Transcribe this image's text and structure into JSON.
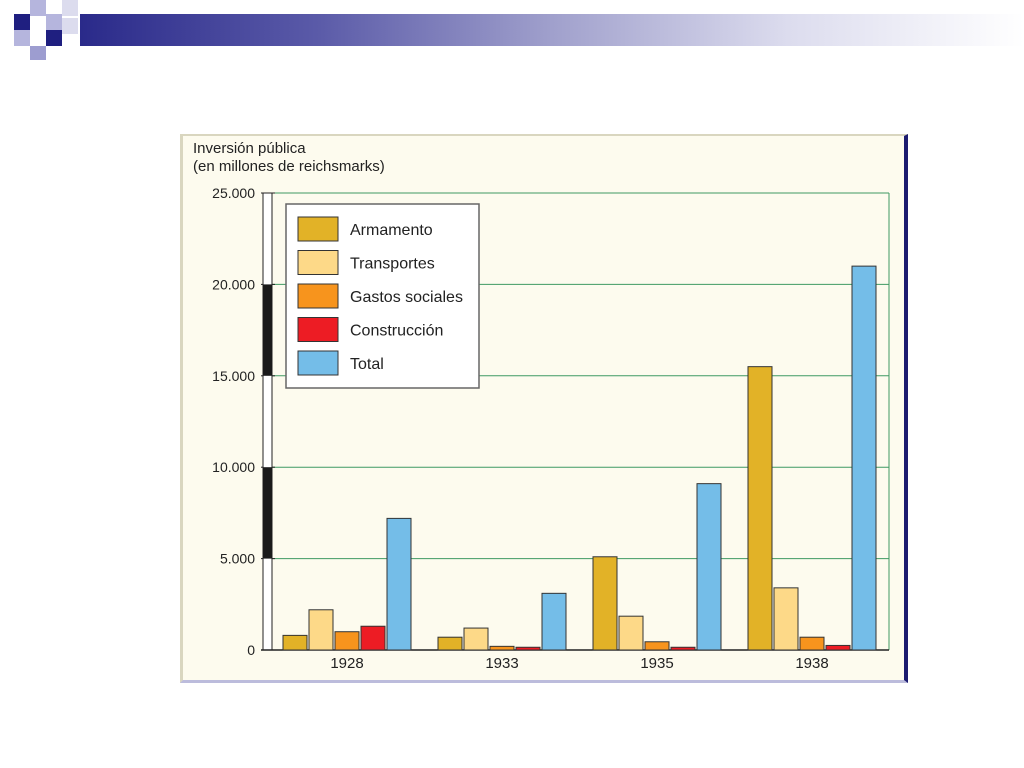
{
  "chart_data": {
    "type": "bar",
    "title": "Inversión pública",
    "subtitle": "(en millones de reichsmarks)",
    "categories": [
      "1928",
      "1933",
      "1935",
      "1938"
    ],
    "series": [
      {
        "name": "Armamento",
        "color": "#e2b227",
        "values": [
          800,
          700,
          5100,
          15500
        ]
      },
      {
        "name": "Transportes",
        "color": "#fdd988",
        "values": [
          2200,
          1200,
          1850,
          3400
        ]
      },
      {
        "name": "Gastos sociales",
        "color": "#f7941d",
        "values": [
          1000,
          200,
          450,
          700
        ]
      },
      {
        "name": "Construcción",
        "color": "#ed1c24",
        "values": [
          1300,
          150,
          150,
          250
        ]
      },
      {
        "name": "Total",
        "color": "#74bde8",
        "values": [
          7200,
          3100,
          9100,
          21000
        ]
      }
    ],
    "ylim": [
      0,
      25000
    ],
    "yticks": [
      {
        "value": 0,
        "label": "0"
      },
      {
        "value": 5000,
        "label": "5.000"
      },
      {
        "value": 10000,
        "label": "10.000"
      },
      {
        "value": 15000,
        "label": "15.000"
      },
      {
        "value": 20000,
        "label": "20.000"
      },
      {
        "value": 25000,
        "label": "25.000"
      }
    ],
    "grid": true,
    "legend_position": "top-left"
  }
}
